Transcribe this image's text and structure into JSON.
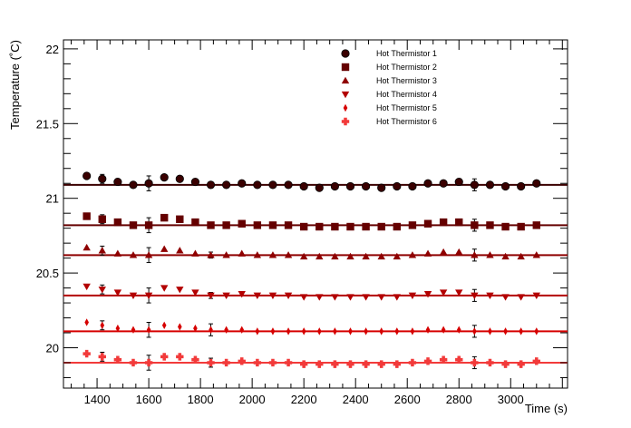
{
  "chart_data": {
    "type": "scatter",
    "title": "",
    "xlabel": "Time (s)",
    "ylabel": "Temperature (˚C)",
    "xlim": [
      1270,
      3220
    ],
    "ylim": [
      19.73,
      22.06
    ],
    "x_ticks": [
      1400,
      1600,
      1800,
      2000,
      2200,
      2400,
      2600,
      2800,
      3000
    ],
    "x_tick_labels": [
      "1400",
      "1600",
      "1800",
      "2000",
      "2200",
      "2400",
      "2600",
      "2800",
      "3000"
    ],
    "y_ticks": [
      20,
      20.5,
      21,
      21.5,
      22
    ],
    "y_tick_labels": [
      "20",
      "20.5",
      "21",
      "21.5",
      "22"
    ],
    "grid": false,
    "legend_position": "top-right",
    "x": [
      1360,
      1420,
      1480,
      1540,
      1600,
      1660,
      1720,
      1780,
      1840,
      1900,
      1960,
      2020,
      2080,
      2140,
      2200,
      2260,
      2320,
      2380,
      2440,
      2500,
      2560,
      2620,
      2680,
      2740,
      2800,
      2860,
      2920,
      2980,
      3040,
      3100
    ],
    "series": [
      {
        "name": "Hot Thermistor 1",
        "color": "#3a0000",
        "marker": "circle",
        "fit_value": 21.09,
        "values": [
          21.15,
          21.13,
          21.11,
          21.09,
          21.1,
          21.14,
          21.13,
          21.11,
          21.09,
          21.09,
          21.1,
          21.09,
          21.09,
          21.09,
          21.08,
          21.07,
          21.08,
          21.08,
          21.08,
          21.07,
          21.08,
          21.08,
          21.1,
          21.1,
          21.11,
          21.09,
          21.09,
          21.08,
          21.08,
          21.1
        ],
        "errors": [
          0,
          0.03,
          0,
          0,
          0.05,
          0,
          0,
          0,
          0.02,
          0,
          0,
          0,
          0,
          0,
          0,
          0,
          0,
          0,
          0,
          0,
          0,
          0,
          0,
          0,
          0,
          0.04,
          0,
          0,
          0,
          0
        ]
      },
      {
        "name": "Hot Thermistor 2",
        "color": "#650000",
        "marker": "square",
        "fit_value": 20.82,
        "values": [
          20.88,
          20.86,
          20.84,
          20.82,
          20.82,
          20.87,
          20.86,
          20.84,
          20.82,
          20.82,
          20.83,
          20.82,
          20.82,
          20.82,
          20.81,
          20.81,
          20.81,
          20.81,
          20.81,
          20.81,
          20.81,
          20.82,
          20.83,
          20.84,
          20.84,
          20.82,
          20.82,
          20.81,
          20.81,
          20.82
        ],
        "errors": [
          0,
          0.03,
          0,
          0,
          0.05,
          0,
          0,
          0,
          0.02,
          0,
          0,
          0,
          0,
          0,
          0,
          0,
          0,
          0,
          0,
          0,
          0,
          0,
          0,
          0,
          0,
          0.04,
          0,
          0,
          0,
          0
        ]
      },
      {
        "name": "Hot Thermistor 3",
        "color": "#8f0000",
        "marker": "triangle-up",
        "fit_value": 20.62,
        "values": [
          20.67,
          20.65,
          20.63,
          20.62,
          20.62,
          20.66,
          20.65,
          20.63,
          20.62,
          20.62,
          20.63,
          20.62,
          20.62,
          20.62,
          20.61,
          20.61,
          20.61,
          20.61,
          20.61,
          20.61,
          20.61,
          20.62,
          20.63,
          20.64,
          20.64,
          20.62,
          20.62,
          20.61,
          20.61,
          20.62
        ],
        "errors": [
          0,
          0.03,
          0,
          0,
          0.05,
          0,
          0,
          0,
          0.02,
          0,
          0,
          0,
          0,
          0,
          0,
          0,
          0,
          0,
          0,
          0,
          0,
          0,
          0,
          0,
          0,
          0.04,
          0,
          0,
          0,
          0
        ]
      },
      {
        "name": "Hot Thermistor 4",
        "color": "#b30000",
        "marker": "triangle-down",
        "fit_value": 20.35,
        "values": [
          20.41,
          20.39,
          20.37,
          20.35,
          20.35,
          20.4,
          20.39,
          20.37,
          20.35,
          20.35,
          20.36,
          20.35,
          20.35,
          20.35,
          20.34,
          20.34,
          20.34,
          20.34,
          20.34,
          20.34,
          20.34,
          20.35,
          20.36,
          20.37,
          20.37,
          20.35,
          20.35,
          20.34,
          20.34,
          20.35
        ],
        "errors": [
          0,
          0.03,
          0,
          0,
          0.05,
          0,
          0,
          0,
          0.02,
          0,
          0,
          0,
          0,
          0,
          0,
          0,
          0,
          0,
          0,
          0,
          0,
          0,
          0,
          0,
          0,
          0.04,
          0,
          0,
          0,
          0
        ]
      },
      {
        "name": "Hot Thermistor 5",
        "color": "#d60000",
        "marker": "diamond",
        "fit_value": 20.11,
        "values": [
          20.17,
          20.15,
          20.13,
          20.12,
          20.12,
          20.15,
          20.14,
          20.13,
          20.12,
          20.12,
          20.12,
          20.11,
          20.11,
          20.11,
          20.11,
          20.11,
          20.11,
          20.11,
          20.11,
          20.11,
          20.11,
          20.11,
          20.12,
          20.12,
          20.12,
          20.11,
          20.11,
          20.11,
          20.11,
          20.11
        ],
        "errors": [
          0,
          0.03,
          0,
          0,
          0.05,
          0,
          0,
          0,
          0.04,
          0,
          0,
          0,
          0,
          0,
          0,
          0,
          0,
          0,
          0,
          0,
          0,
          0,
          0,
          0,
          0,
          0.04,
          0,
          0,
          0,
          0
        ]
      },
      {
        "name": "Hot Thermistor 6",
        "color": "#f23a3a",
        "marker": "cross",
        "fit_value": 19.9,
        "values": [
          19.96,
          19.94,
          19.92,
          19.9,
          19.9,
          19.94,
          19.94,
          19.92,
          19.9,
          19.9,
          19.91,
          19.9,
          19.9,
          19.9,
          19.89,
          19.89,
          19.89,
          19.89,
          19.89,
          19.89,
          19.89,
          19.9,
          19.91,
          19.92,
          19.92,
          19.9,
          19.9,
          19.89,
          19.89,
          19.91
        ],
        "errors": [
          0,
          0.03,
          0,
          0,
          0.05,
          0,
          0,
          0,
          0.03,
          0,
          0,
          0,
          0,
          0,
          0,
          0,
          0,
          0,
          0,
          0,
          0,
          0,
          0,
          0,
          0,
          0.04,
          0,
          0,
          0,
          0
        ]
      }
    ]
  }
}
